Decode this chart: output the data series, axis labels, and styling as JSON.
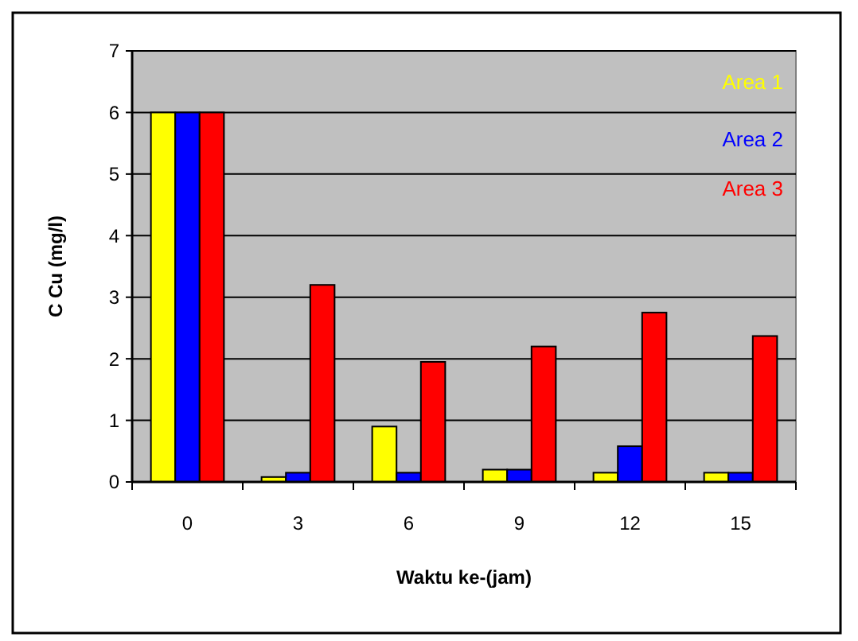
{
  "chart_data": {
    "type": "bar",
    "xlabel": "Waktu ke-(jam)",
    "ylabel": "C Cu (mg/l)",
    "categories": [
      "0",
      "3",
      "6",
      "9",
      "12",
      "15"
    ],
    "series": [
      {
        "name": "Area 1",
        "color": "#ffff00",
        "values": [
          6,
          0.08,
          0.9,
          0.2,
          0.15,
          0.15
        ]
      },
      {
        "name": "Area 2",
        "color": "#0000ff",
        "values": [
          6,
          0.15,
          0.15,
          0.2,
          0.58,
          0.15
        ]
      },
      {
        "name": "Area 3",
        "color": "#ff0000",
        "values": [
          6,
          3.2,
          1.95,
          2.2,
          2.75,
          2.37
        ]
      }
    ],
    "ylim": [
      0,
      7
    ],
    "yticks": [
      0,
      1,
      2,
      3,
      4,
      5,
      6,
      7
    ],
    "grid": "y",
    "legend": "top right"
  }
}
